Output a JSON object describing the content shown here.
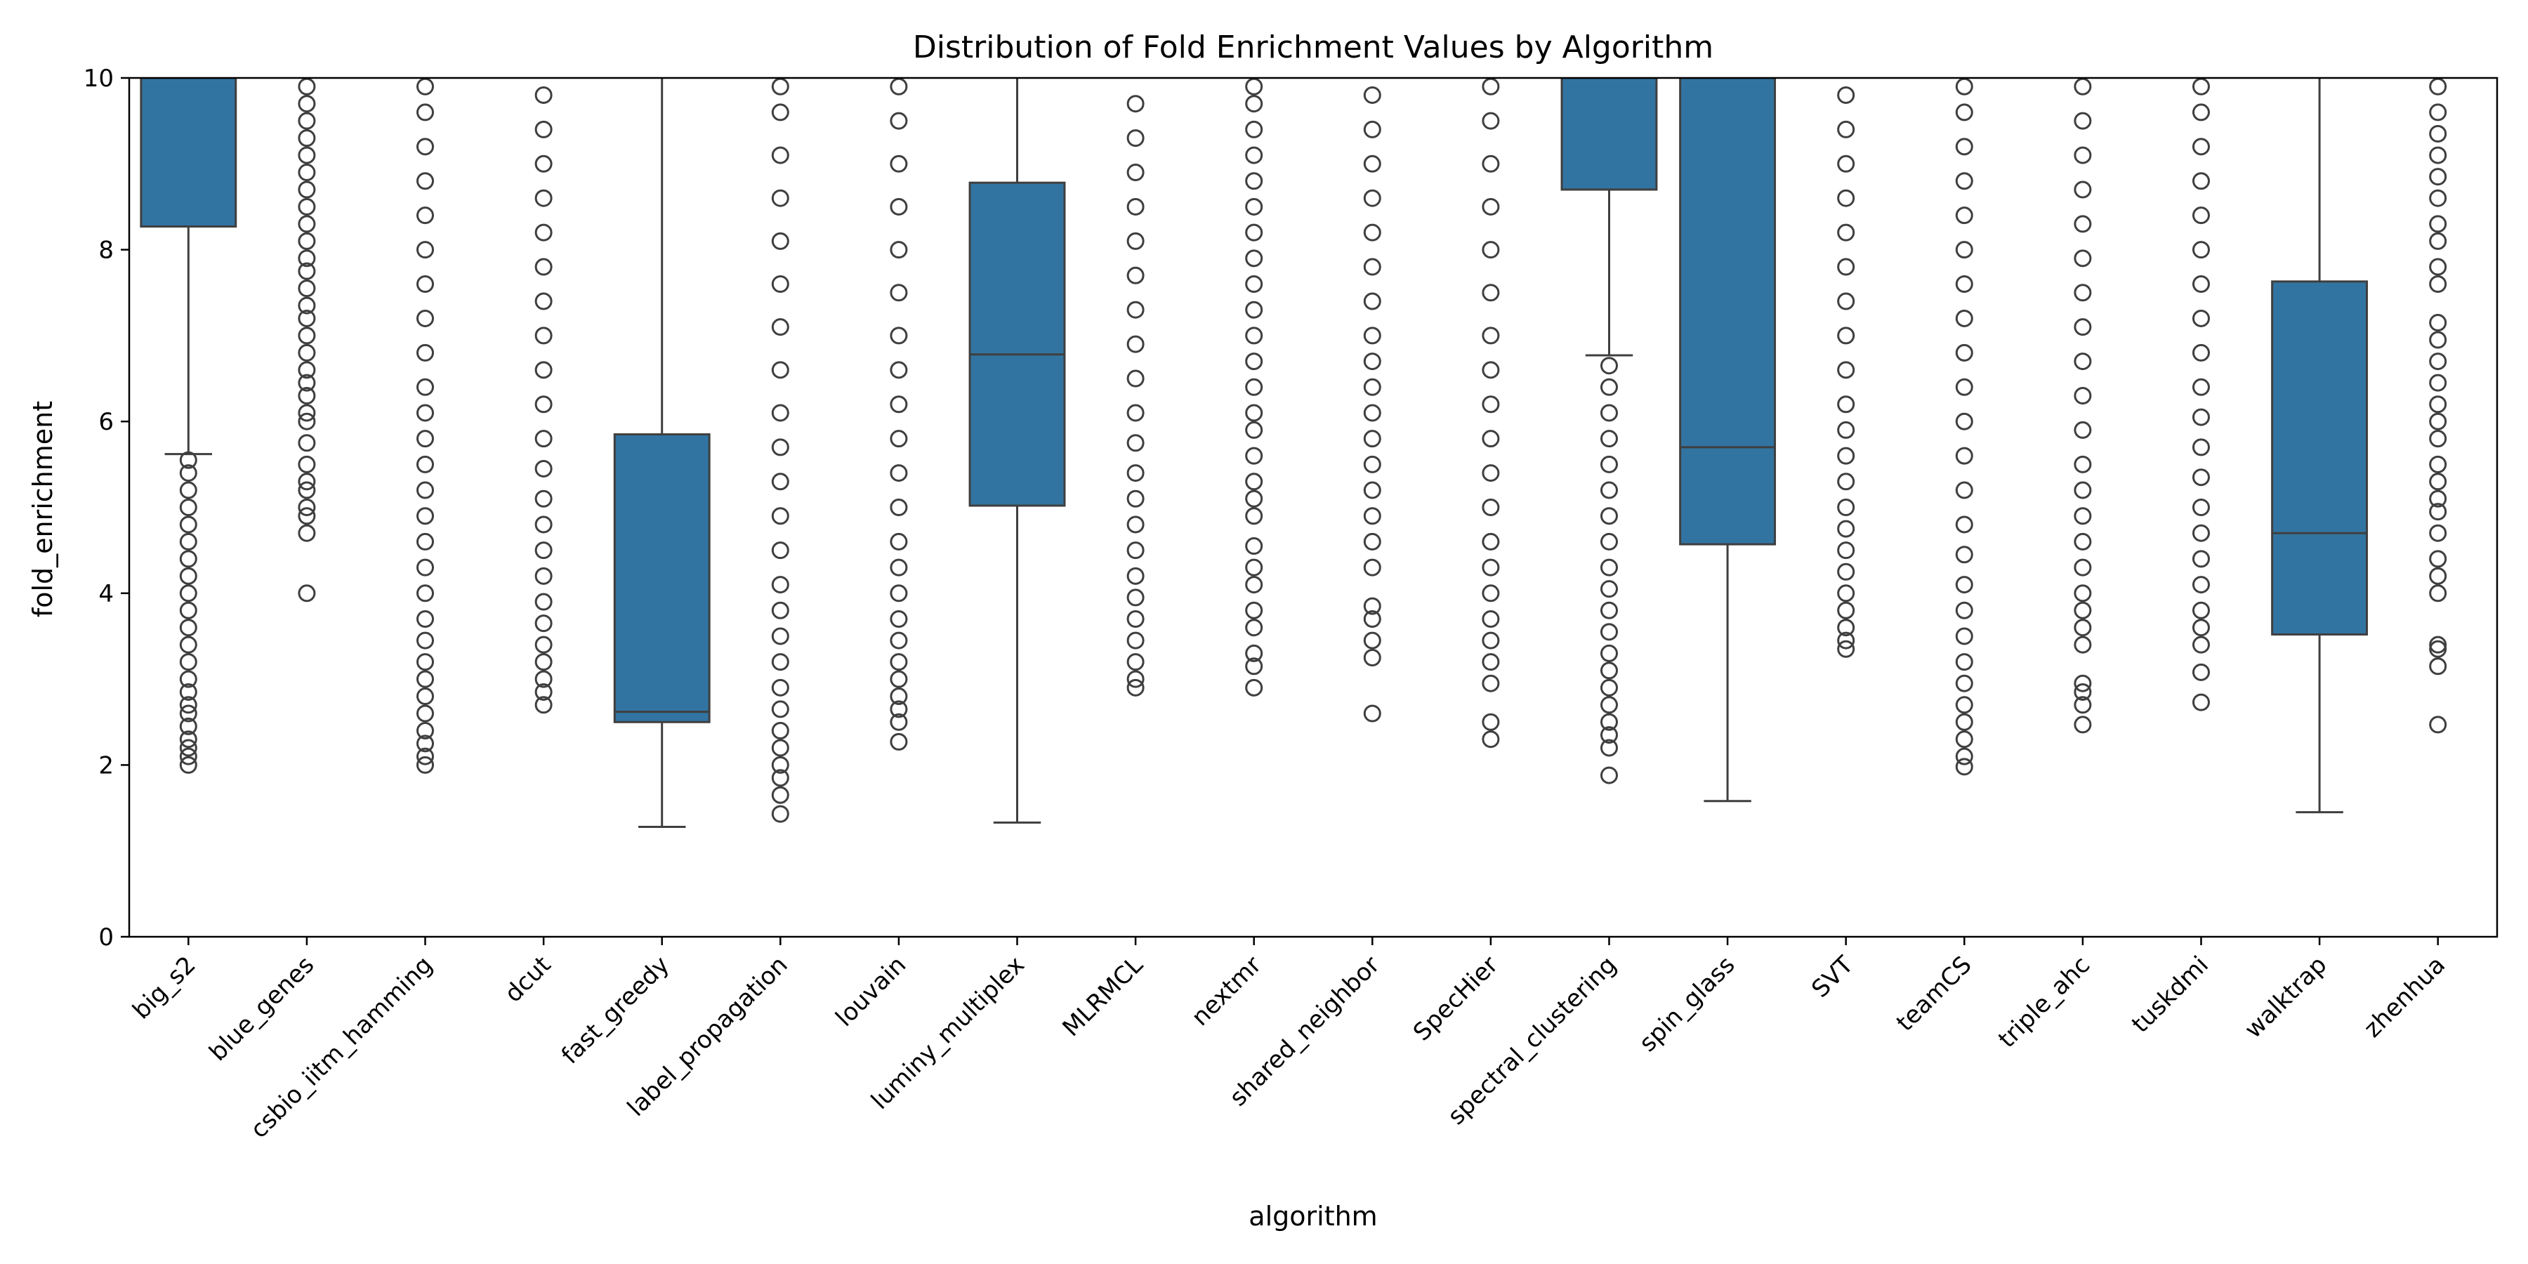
{
  "chart_data": {
    "type": "box",
    "title": "Distribution of Fold Enrichment Values by Algorithm",
    "xlabel": "algorithm",
    "ylabel": "fold_enrichment",
    "ylim": [
      0,
      10
    ],
    "yticks": [
      "0",
      "2",
      "4",
      "6",
      "8",
      "10"
    ],
    "grid": false,
    "legend": "none",
    "color": "#3274a1",
    "line_color": "#3f3f3f",
    "categories": [
      "big_s2",
      "blue_genes",
      "csbio_iitm_hamming",
      "dcut",
      "fast_greedy",
      "label_propagation",
      "louvain",
      "luminy_multiplex",
      "MLRMCL",
      "nextmr",
      "shared_neighbor",
      "SpecHier",
      "spectral_clustering",
      "spin_glass",
      "SVT",
      "teamCS",
      "triple_ahc",
      "tuskdmi",
      "walktrap",
      "zhenhua"
    ],
    "boxes": [
      {
        "name": "big_s2",
        "whisker_low": 5.62,
        "q1": 8.27,
        "median": 10.0,
        "q3": 10.0,
        "whisker_high": 10.0,
        "outliers": [
          2.0,
          2.1,
          2.2,
          2.3,
          2.45,
          2.6,
          2.7,
          2.85,
          3.0,
          3.2,
          3.4,
          3.6,
          3.8,
          4.0,
          4.2,
          4.4,
          4.6,
          4.8,
          5.0,
          5.2,
          5.4,
          5.55
        ]
      },
      {
        "name": "blue_genes",
        "whisker_low": 10.0,
        "q1": 10.0,
        "median": 10.0,
        "q3": 10.0,
        "whisker_high": 10.0,
        "outliers": [
          4.0,
          4.7,
          4.9,
          5.0,
          5.2,
          5.3,
          5.5,
          5.75,
          6.0,
          6.1,
          6.3,
          6.45,
          6.6,
          6.8,
          7.0,
          7.2,
          7.35,
          7.55,
          7.75,
          7.9,
          8.1,
          8.3,
          8.5,
          8.7,
          8.9,
          9.1,
          9.3,
          9.5,
          9.7,
          9.9
        ]
      },
      {
        "name": "csbio_iitm_hamming",
        "whisker_low": 10.0,
        "q1": 10.0,
        "median": 10.0,
        "q3": 10.0,
        "whisker_high": 10.0,
        "outliers": [
          2.0,
          2.1,
          2.25,
          2.4,
          2.6,
          2.8,
          3.0,
          3.2,
          3.45,
          3.7,
          4.0,
          4.3,
          4.6,
          4.9,
          5.2,
          5.5,
          5.8,
          6.1,
          6.4,
          6.8,
          7.2,
          7.6,
          8.0,
          8.4,
          8.8,
          9.2,
          9.6,
          9.9
        ]
      },
      {
        "name": "dcut",
        "whisker_low": 10.0,
        "q1": 10.0,
        "median": 10.0,
        "q3": 10.0,
        "whisker_high": 10.0,
        "outliers": [
          2.7,
          2.85,
          3.0,
          3.2,
          3.4,
          3.65,
          3.9,
          4.2,
          4.5,
          4.8,
          5.1,
          5.45,
          5.8,
          6.2,
          6.6,
          7.0,
          7.4,
          7.8,
          8.2,
          8.6,
          9.0,
          9.4,
          9.8
        ]
      },
      {
        "name": "fast_greedy",
        "whisker_low": 1.28,
        "q1": 2.5,
        "median": 2.62,
        "q3": 5.85,
        "whisker_high": 10.0,
        "outliers": []
      },
      {
        "name": "label_propagation",
        "whisker_low": 10.0,
        "q1": 10.0,
        "median": 10.0,
        "q3": 10.0,
        "whisker_high": 10.0,
        "outliers": [
          1.43,
          1.65,
          1.85,
          2.0,
          2.2,
          2.4,
          2.65,
          2.9,
          3.2,
          3.5,
          3.8,
          4.1,
          4.5,
          4.9,
          5.3,
          5.7,
          6.1,
          6.6,
          7.1,
          7.6,
          8.1,
          8.6,
          9.1,
          9.6,
          9.9
        ]
      },
      {
        "name": "louvain",
        "whisker_low": 10.0,
        "q1": 10.0,
        "median": 10.0,
        "q3": 10.0,
        "whisker_high": 10.0,
        "outliers": [
          2.27,
          2.5,
          2.65,
          2.8,
          3.0,
          3.2,
          3.45,
          3.7,
          4.0,
          4.3,
          4.6,
          5.0,
          5.4,
          5.8,
          6.2,
          6.6,
          7.0,
          7.5,
          8.0,
          8.5,
          9.0,
          9.5,
          9.9
        ]
      },
      {
        "name": "luminy_multiplex",
        "whisker_low": 1.33,
        "q1": 5.02,
        "median": 6.78,
        "q3": 8.78,
        "whisker_high": 10.0,
        "outliers": []
      },
      {
        "name": "MLRMCL",
        "whisker_low": 10.0,
        "q1": 10.0,
        "median": 10.0,
        "q3": 10.0,
        "whisker_high": 10.0,
        "outliers": [
          2.9,
          3.0,
          3.2,
          3.45,
          3.7,
          3.95,
          4.2,
          4.5,
          4.8,
          5.1,
          5.4,
          5.75,
          6.1,
          6.5,
          6.9,
          7.3,
          7.7,
          8.1,
          8.5,
          8.9,
          9.3,
          9.7
        ]
      },
      {
        "name": "nextmr",
        "whisker_low": 10.0,
        "q1": 10.0,
        "median": 10.0,
        "q3": 10.0,
        "whisker_high": 10.0,
        "outliers": [
          2.9,
          3.15,
          3.3,
          3.6,
          3.8,
          4.1,
          4.3,
          4.55,
          4.9,
          5.1,
          5.3,
          5.6,
          5.9,
          6.1,
          6.4,
          6.7,
          7.0,
          7.3,
          7.6,
          7.9,
          8.2,
          8.5,
          8.8,
          9.1,
          9.4,
          9.7,
          9.9
        ]
      },
      {
        "name": "shared_neighbor",
        "whisker_low": 10.0,
        "q1": 10.0,
        "median": 10.0,
        "q3": 10.0,
        "whisker_high": 10.0,
        "outliers": [
          2.6,
          3.25,
          3.45,
          3.7,
          3.85,
          4.3,
          4.6,
          4.9,
          5.2,
          5.5,
          5.8,
          6.1,
          6.4,
          6.7,
          7.0,
          7.4,
          7.8,
          8.2,
          8.6,
          9.0,
          9.4,
          9.8
        ]
      },
      {
        "name": "SpecHier",
        "whisker_low": 10.0,
        "q1": 10.0,
        "median": 10.0,
        "q3": 10.0,
        "whisker_high": 10.0,
        "outliers": [
          2.3,
          2.5,
          2.95,
          3.2,
          3.45,
          3.7,
          4.0,
          4.3,
          4.6,
          5.0,
          5.4,
          5.8,
          6.2,
          6.6,
          7.0,
          7.5,
          8.0,
          8.5,
          9.0,
          9.5,
          9.9
        ]
      },
      {
        "name": "spectral_clustering",
        "whisker_low": 6.77,
        "q1": 8.7,
        "median": 10.0,
        "q3": 10.0,
        "whisker_high": 10.0,
        "outliers": [
          1.88,
          2.2,
          2.35,
          2.5,
          2.7,
          2.9,
          3.1,
          3.3,
          3.55,
          3.8,
          4.05,
          4.3,
          4.6,
          4.9,
          5.2,
          5.5,
          5.8,
          6.1,
          6.4,
          6.65
        ]
      },
      {
        "name": "spin_glass",
        "whisker_low": 1.58,
        "q1": 4.57,
        "median": 5.7,
        "q3": 10.0,
        "whisker_high": 10.0,
        "outliers": []
      },
      {
        "name": "SVT",
        "whisker_low": 10.0,
        "q1": 10.0,
        "median": 10.0,
        "q3": 10.0,
        "whisker_high": 10.0,
        "outliers": [
          3.35,
          3.45,
          3.6,
          3.8,
          4.0,
          4.25,
          4.5,
          4.75,
          5.0,
          5.3,
          5.6,
          5.9,
          6.2,
          6.6,
          7.0,
          7.4,
          7.8,
          8.2,
          8.6,
          9.0,
          9.4,
          9.8
        ]
      },
      {
        "name": "teamCS",
        "whisker_low": 10.0,
        "q1": 10.0,
        "median": 10.0,
        "q3": 10.0,
        "whisker_high": 10.0,
        "outliers": [
          1.98,
          2.1,
          2.3,
          2.5,
          2.7,
          2.95,
          3.2,
          3.5,
          3.8,
          4.1,
          4.45,
          4.8,
          5.2,
          5.6,
          6.0,
          6.4,
          6.8,
          7.2,
          7.6,
          8.0,
          8.4,
          8.8,
          9.2,
          9.6,
          9.9
        ]
      },
      {
        "name": "triple_ahc",
        "whisker_low": 10.0,
        "q1": 10.0,
        "median": 10.0,
        "q3": 10.0,
        "whisker_high": 10.0,
        "outliers": [
          2.47,
          2.7,
          2.85,
          2.95,
          3.4,
          3.6,
          3.8,
          4.0,
          4.3,
          4.6,
          4.9,
          5.2,
          5.5,
          5.9,
          6.3,
          6.7,
          7.1,
          7.5,
          7.9,
          8.3,
          8.7,
          9.1,
          9.5,
          9.9
        ]
      },
      {
        "name": "tuskdmi",
        "whisker_low": 10.0,
        "q1": 10.0,
        "median": 10.0,
        "q3": 10.0,
        "whisker_high": 10.0,
        "outliers": [
          2.73,
          3.08,
          3.4,
          3.6,
          3.8,
          4.1,
          4.4,
          4.7,
          5.0,
          5.35,
          5.7,
          6.05,
          6.4,
          6.8,
          7.2,
          7.6,
          8.0,
          8.4,
          8.8,
          9.2,
          9.6,
          9.9
        ]
      },
      {
        "name": "walktrap",
        "whisker_low": 1.45,
        "q1": 3.52,
        "median": 4.7,
        "q3": 7.63,
        "whisker_high": 10.0,
        "outliers": []
      },
      {
        "name": "zhenhua",
        "whisker_low": 10.0,
        "q1": 10.0,
        "median": 10.0,
        "q3": 10.0,
        "whisker_high": 10.0,
        "outliers": [
          2.47,
          3.15,
          3.35,
          3.4,
          4.0,
          4.2,
          4.4,
          4.7,
          4.95,
          5.1,
          5.3,
          5.5,
          5.8,
          6.0,
          6.2,
          6.45,
          6.7,
          6.95,
          7.15,
          7.6,
          7.8,
          8.1,
          8.3,
          8.6,
          8.85,
          9.1,
          9.35,
          9.6,
          9.9
        ]
      }
    ]
  }
}
